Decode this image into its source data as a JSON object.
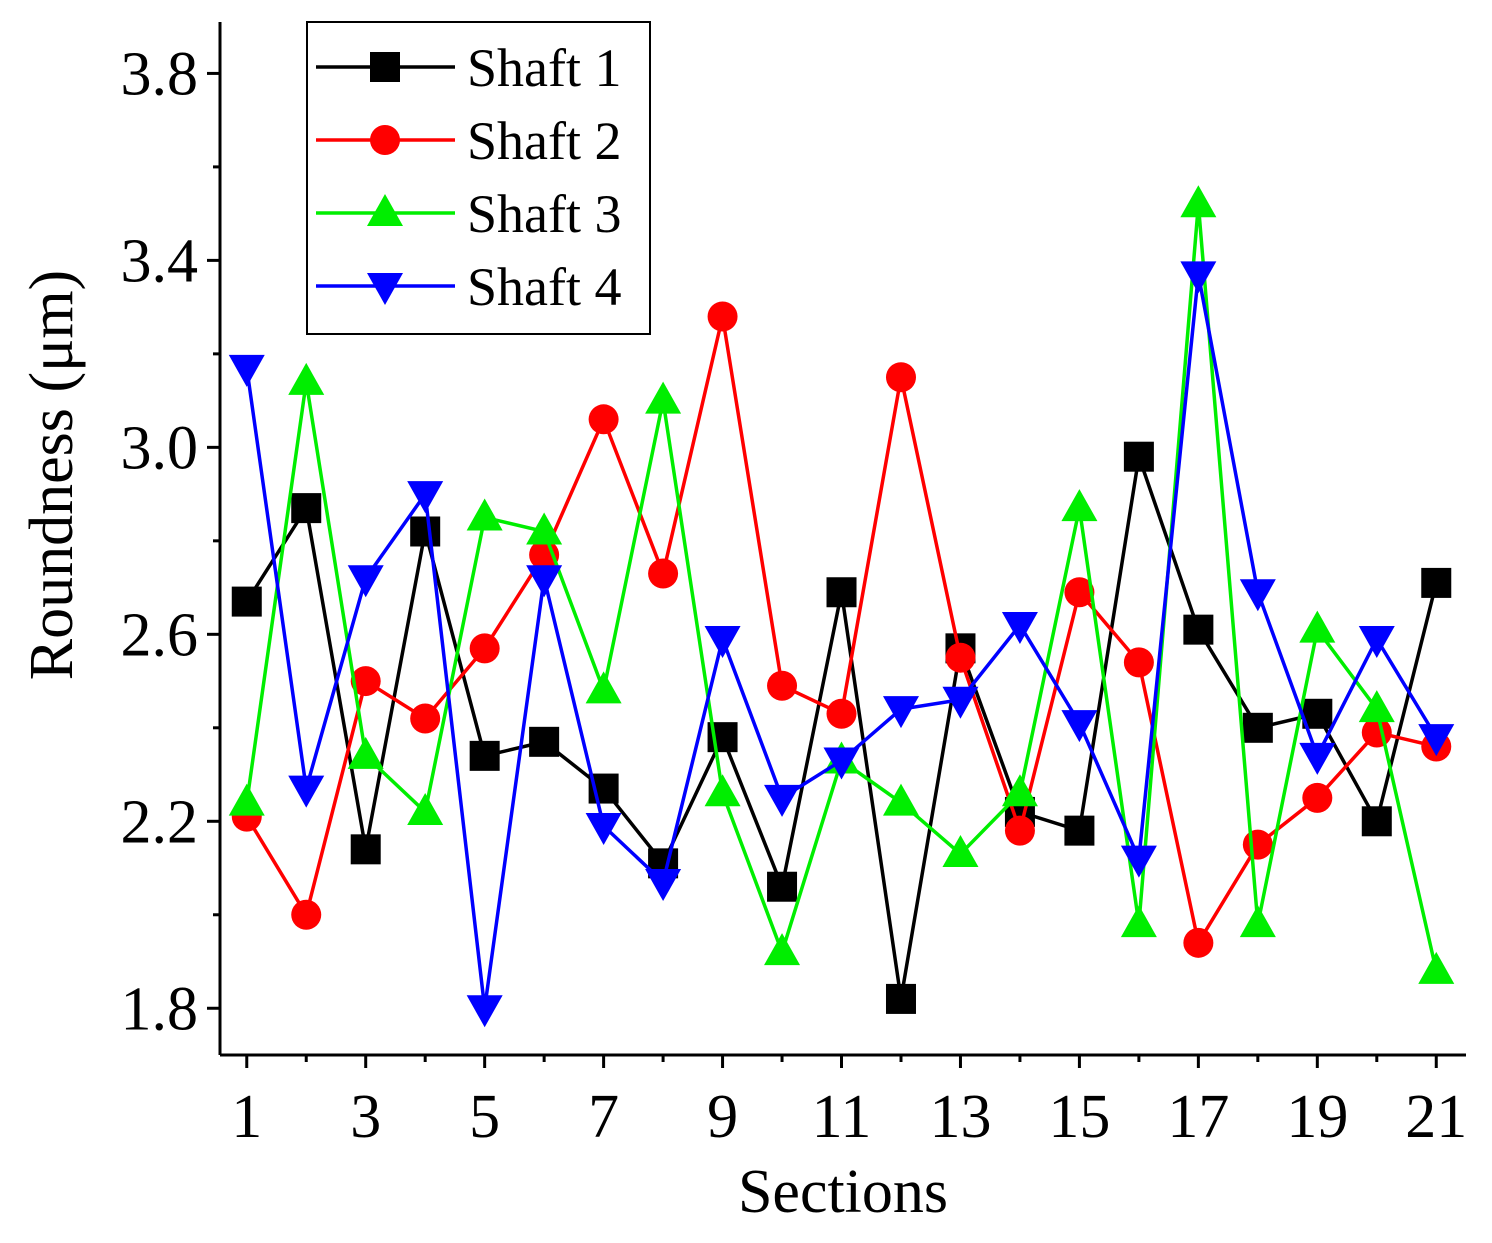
{
  "chart_data": {
    "type": "line",
    "title": "",
    "xlabel": "Sections",
    "ylabel": "Roundness  (μm)",
    "x": [
      1,
      2,
      3,
      4,
      5,
      6,
      7,
      8,
      9,
      10,
      11,
      12,
      13,
      14,
      15,
      16,
      17,
      18,
      19,
      20,
      21
    ],
    "xlim": [
      0.55,
      21.5
    ],
    "ylim": [
      1.7,
      3.91
    ],
    "xticks": [
      1,
      3,
      5,
      7,
      9,
      11,
      13,
      15,
      17,
      19,
      21
    ],
    "xtick_labels": [
      "1",
      "3",
      "5",
      "7",
      "9",
      "11",
      "13",
      "15",
      "17",
      "19",
      "21"
    ],
    "yticks": [
      1.8,
      2.2,
      2.6,
      3.0,
      3.4,
      3.8
    ],
    "ytick_labels": [
      "1.8",
      "2.2",
      "2.6",
      "3.0",
      "3.4",
      "3.8"
    ],
    "grid": false,
    "legend_position": "top-left",
    "series": [
      {
        "name": "Shaft 1",
        "color": "#000000",
        "marker": "square",
        "values": [
          2.67,
          2.87,
          2.14,
          2.82,
          2.34,
          2.37,
          2.27,
          2.11,
          2.38,
          2.06,
          2.69,
          1.82,
          2.57,
          2.22,
          2.18,
          2.98,
          2.61,
          2.4,
          2.43,
          2.2,
          2.71
        ]
      },
      {
        "name": "Shaft 2",
        "color": "#ff0000",
        "marker": "circle",
        "values": [
          2.21,
          2.0,
          2.5,
          2.42,
          2.57,
          2.77,
          3.06,
          2.73,
          3.28,
          2.49,
          2.43,
          3.15,
          2.55,
          2.18,
          2.69,
          2.54,
          1.94,
          2.15,
          2.25,
          2.39,
          2.36
        ]
      },
      {
        "name": "Shaft 3",
        "color": "#00ee00",
        "marker": "triangle-up",
        "values": [
          2.24,
          3.14,
          2.34,
          2.22,
          2.85,
          2.82,
          2.48,
          3.1,
          2.26,
          1.92,
          2.33,
          2.24,
          2.13,
          2.26,
          2.87,
          1.98,
          3.52,
          1.98,
          2.61,
          2.44,
          1.88
        ]
      },
      {
        "name": "Shaft 4",
        "color": "#0000ff",
        "marker": "triangle-down",
        "values": [
          3.17,
          2.27,
          2.72,
          2.9,
          1.8,
          2.72,
          2.19,
          2.07,
          2.59,
          2.25,
          2.33,
          2.44,
          2.46,
          2.62,
          2.41,
          2.12,
          3.37,
          2.69,
          2.34,
          2.59,
          2.38
        ]
      }
    ]
  }
}
